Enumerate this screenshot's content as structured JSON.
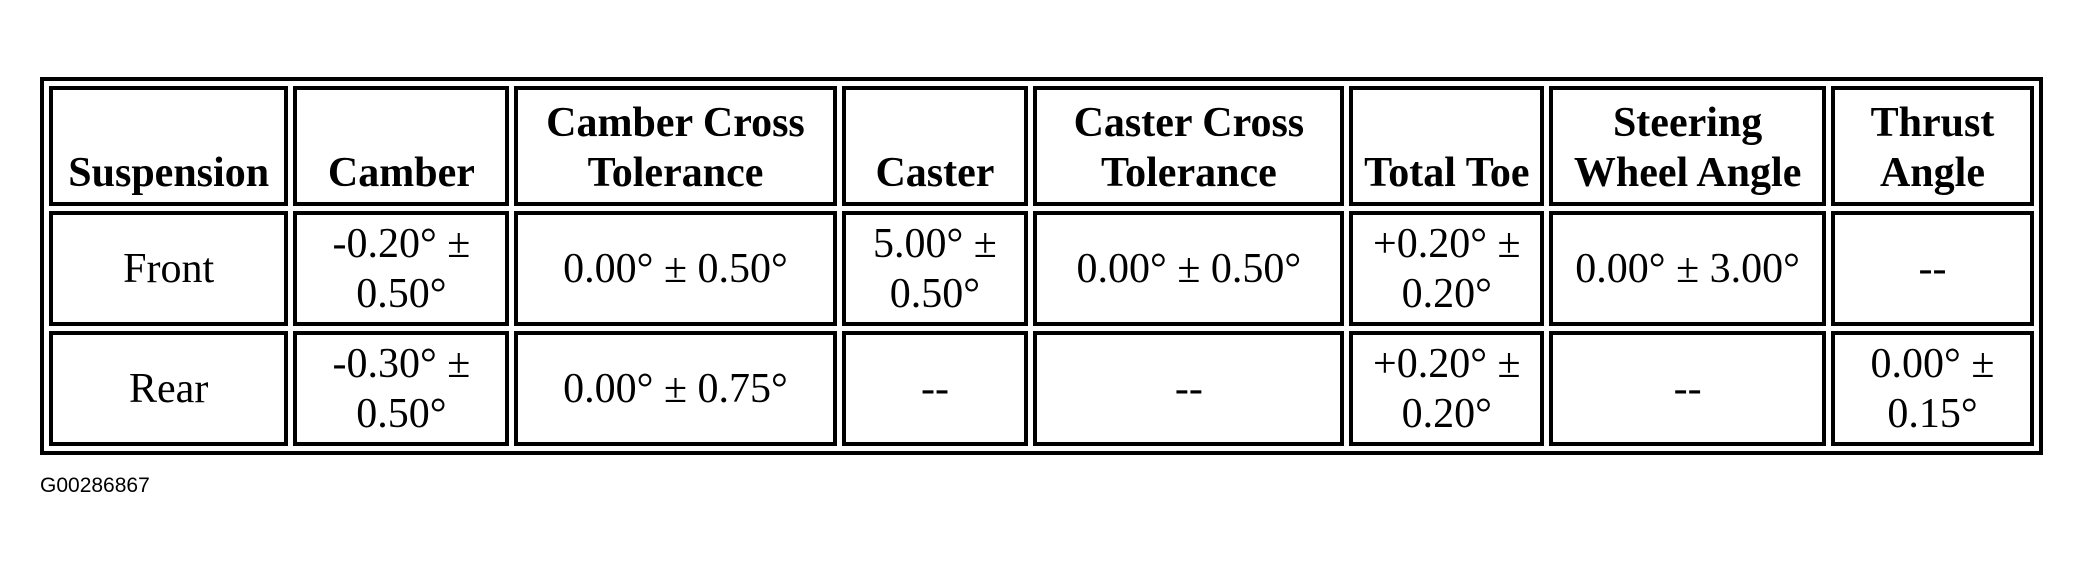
{
  "table": {
    "headers": [
      "Suspension",
      "Camber",
      "Camber Cross Tolerance",
      "Caster",
      "Caster Cross Tolerance",
      "Total Toe",
      "Steering Wheel Angle",
      "Thrust Angle"
    ],
    "rows": [
      [
        "Front",
        "-0.20° ± 0.50°",
        "0.00° ± 0.50°",
        "5.00° ± 0.50°",
        "0.00° ± 0.50°",
        "+0.20° ± 0.20°",
        "0.00° ± 3.00°",
        "--"
      ],
      [
        "Rear",
        "-0.30° ± 0.50°",
        "0.00° ± 0.75°",
        "--",
        "--",
        "+0.20° ± 0.20°",
        "--",
        "0.00° ± 0.15°"
      ]
    ]
  },
  "caption": "G00286867"
}
